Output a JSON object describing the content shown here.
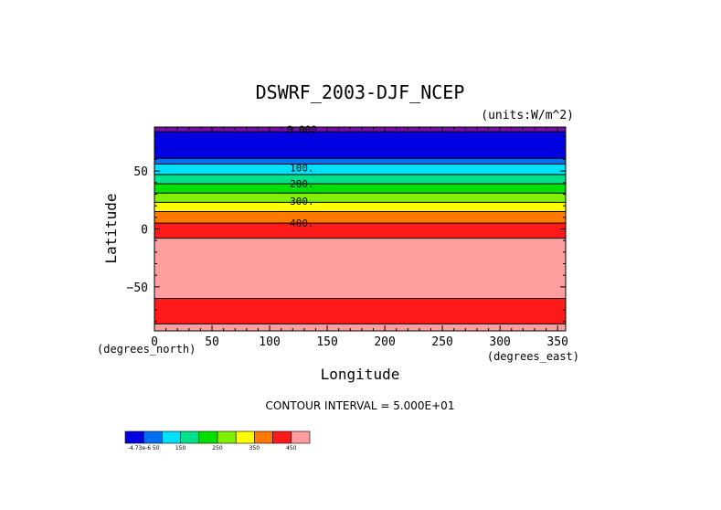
{
  "chart_data": {
    "type": "heatmap",
    "title": "DSWRF_2003-DJF_NCEP",
    "units_label": "(units:W/m^2)",
    "xlabel": "Longitude",
    "ylabel": "Latitude",
    "x_unit_label": "(degrees_east)",
    "y_unit_label": "(degrees_north)",
    "xlim": [
      0,
      357
    ],
    "ylim": [
      -88,
      88
    ],
    "x_ticks": [
      0,
      50,
      100,
      150,
      200,
      250,
      300,
      350
    ],
    "y_ticks": [
      -50,
      0,
      50
    ],
    "contour_interval_text": "CONTOUR INTERVAL = 5.000E+01",
    "bands": [
      {
        "lat_min": 84,
        "lat_max": 88,
        "color": "#7a0fa8"
      },
      {
        "lat_min": 61,
        "lat_max": 84,
        "color": "#0000e0"
      },
      {
        "lat_min": 56,
        "lat_max": 61,
        "color": "#0070f0"
      },
      {
        "lat_min": 47,
        "lat_max": 56,
        "color": "#00e0f8"
      },
      {
        "lat_min": 39,
        "lat_max": 47,
        "color": "#00e08a"
      },
      {
        "lat_min": 31,
        "lat_max": 39,
        "color": "#00e000"
      },
      {
        "lat_min": 23,
        "lat_max": 31,
        "color": "#80f000"
      },
      {
        "lat_min": 15,
        "lat_max": 23,
        "color": "#ffff00"
      },
      {
        "lat_min": 5,
        "lat_max": 15,
        "color": "#ff7800"
      },
      {
        "lat_min": -8,
        "lat_max": 5,
        "color": "#ff1a1a"
      },
      {
        "lat_min": -60,
        "lat_max": -8,
        "color": "#ff9e9e"
      },
      {
        "lat_min": -82,
        "lat_max": -60,
        "color": "#ff1a1a"
      },
      {
        "lat_min": -88,
        "lat_max": -82,
        "color": "#ff9e9e"
      }
    ],
    "contour_lines_lat": [
      84,
      61,
      56,
      47,
      39,
      31,
      23,
      15,
      5,
      -8,
      -60,
      -82
    ],
    "contour_labels": [
      {
        "text": "0.000",
        "lat": 86,
        "lon": 128
      },
      {
        "text": "100.",
        "lat": 53,
        "lon": 128
      },
      {
        "text": "200.",
        "lat": 39,
        "lon": 128
      },
      {
        "text": "300.",
        "lat": 24,
        "lon": 128
      },
      {
        "text": "400.",
        "lat": 5,
        "lon": 128
      }
    ],
    "colorbar": {
      "colors": [
        "#0000e0",
        "#0070f0",
        "#00e0f8",
        "#00e08a",
        "#00e000",
        "#80f000",
        "#ffff00",
        "#ff7800",
        "#ff1a1a",
        "#ff9e9e"
      ],
      "labels": [
        {
          "text": "-4.73e-6 50",
          "pos": 1
        },
        {
          "text": "150",
          "pos": 3
        },
        {
          "text": "250",
          "pos": 5
        },
        {
          "text": "350",
          "pos": 7
        },
        {
          "text": "450",
          "pos": 9
        }
      ]
    }
  }
}
